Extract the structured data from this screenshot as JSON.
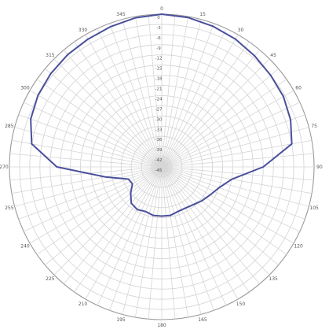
{
  "chart_data": {
    "type": "polar-line",
    "title": "",
    "angle_labels": [
      {
        "angle": 0,
        "label": "0"
      },
      {
        "angle": 15,
        "label": "15"
      },
      {
        "angle": 30,
        "label": "30"
      },
      {
        "angle": 45,
        "label": "45"
      },
      {
        "angle": 60,
        "label": "60"
      },
      {
        "angle": 75,
        "label": "75"
      },
      {
        "angle": 90,
        "label": "90"
      },
      {
        "angle": 105,
        "label": "105"
      },
      {
        "angle": 120,
        "label": "120"
      },
      {
        "angle": 135,
        "label": "135"
      },
      {
        "angle": 150,
        "label": "150"
      },
      {
        "angle": 165,
        "label": "165"
      },
      {
        "angle": 180,
        "label": "180"
      },
      {
        "angle": 195,
        "label": "195"
      },
      {
        "angle": 210,
        "label": "210"
      },
      {
        "angle": 225,
        "label": "225"
      },
      {
        "angle": 240,
        "label": "240"
      },
      {
        "angle": 255,
        "label": "255"
      },
      {
        "angle": 270,
        "label": "270"
      },
      {
        "angle": 285,
        "label": "285"
      },
      {
        "angle": 300,
        "label": "300"
      },
      {
        "angle": 315,
        "label": "315"
      },
      {
        "angle": 330,
        "label": "330"
      },
      {
        "angle": 345,
        "label": "345"
      }
    ],
    "radial_labels": [
      "0",
      "-3",
      "-6",
      "-9",
      "-12",
      "-15",
      "-18",
      "-21",
      "-24",
      "-27",
      "-30",
      "-33",
      "-36",
      "-39",
      "-42",
      "-45"
    ],
    "r_range": [
      -45,
      0
    ],
    "angle_step_deg": 5,
    "grid": true,
    "line_color": "#4a4f9c",
    "series": [
      {
        "points": [
          {
            "angle": 0,
            "value": 0
          },
          {
            "angle": 10,
            "value": -0.3
          },
          {
            "angle": 20,
            "value": -0.9
          },
          {
            "angle": 30,
            "value": -1.5
          },
          {
            "angle": 40,
            "value": -2.3
          },
          {
            "angle": 50,
            "value": -3.0
          },
          {
            "angle": 60,
            "value": -3.5
          },
          {
            "angle": 70,
            "value": -4.5
          },
          {
            "angle": 80,
            "value": -6.0
          },
          {
            "angle": 90,
            "value": -15.0
          },
          {
            "angle": 100,
            "value": -24.0
          },
          {
            "angle": 110,
            "value": -27.0
          },
          {
            "angle": 120,
            "value": -28.5
          },
          {
            "angle": 130,
            "value": -29.5
          },
          {
            "angle": 140,
            "value": -30.5
          },
          {
            "angle": 150,
            "value": -31.0
          },
          {
            "angle": 160,
            "value": -31.0
          },
          {
            "angle": 170,
            "value": -30.5
          },
          {
            "angle": 180,
            "value": -30.5
          },
          {
            "angle": 190,
            "value": -30.5
          },
          {
            "angle": 200,
            "value": -31.0
          },
          {
            "angle": 210,
            "value": -30.5
          },
          {
            "angle": 220,
            "value": -31.0
          },
          {
            "angle": 230,
            "value": -33.0
          },
          {
            "angle": 240,
            "value": -35.0
          },
          {
            "angle": 250,
            "value": -34.5
          },
          {
            "angle": 260,
            "value": -28.0
          },
          {
            "angle": 270,
            "value": -14.0
          },
          {
            "angle": 280,
            "value": -6.0
          },
          {
            "angle": 290,
            "value": -3.8
          },
          {
            "angle": 300,
            "value": -2.8
          },
          {
            "angle": 310,
            "value": -2.2
          },
          {
            "angle": 320,
            "value": -1.8
          },
          {
            "angle": 330,
            "value": -1.5
          },
          {
            "angle": 340,
            "value": -1.0
          },
          {
            "angle": 350,
            "value": -0.4
          },
          {
            "angle": 360,
            "value": 0
          }
        ]
      }
    ]
  }
}
